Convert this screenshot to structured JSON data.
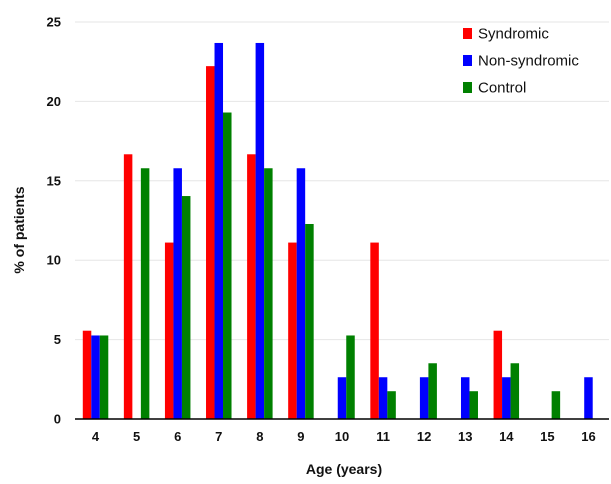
{
  "chart_data": {
    "type": "bar",
    "xlabel": "Age (years)",
    "ylabel": "% of patients",
    "ylim": [
      0,
      25
    ],
    "yticks": [
      0,
      5,
      10,
      15,
      20,
      25
    ],
    "grid": true,
    "legend_position": "top-right",
    "categories": [
      "4",
      "5",
      "6",
      "7",
      "8",
      "9",
      "10",
      "11",
      "12",
      "13",
      "14",
      "15",
      "16"
    ],
    "series": [
      {
        "name": "Syndromic",
        "color": "#ff0000",
        "values": [
          5.56,
          16.67,
          11.11,
          22.22,
          16.67,
          11.11,
          0,
          11.11,
          0,
          0,
          5.56,
          0,
          0
        ]
      },
      {
        "name": "Non-syndromic",
        "color": "#0000ff",
        "values": [
          5.26,
          0,
          15.79,
          23.68,
          23.68,
          15.79,
          2.63,
          2.63,
          2.63,
          2.63,
          2.63,
          0,
          2.63
        ]
      },
      {
        "name": "Control",
        "color": "#008000",
        "values": [
          5.26,
          15.79,
          14.04,
          19.3,
          15.79,
          12.28,
          5.26,
          1.75,
          3.51,
          1.75,
          3.51,
          1.75,
          0
        ]
      }
    ]
  }
}
